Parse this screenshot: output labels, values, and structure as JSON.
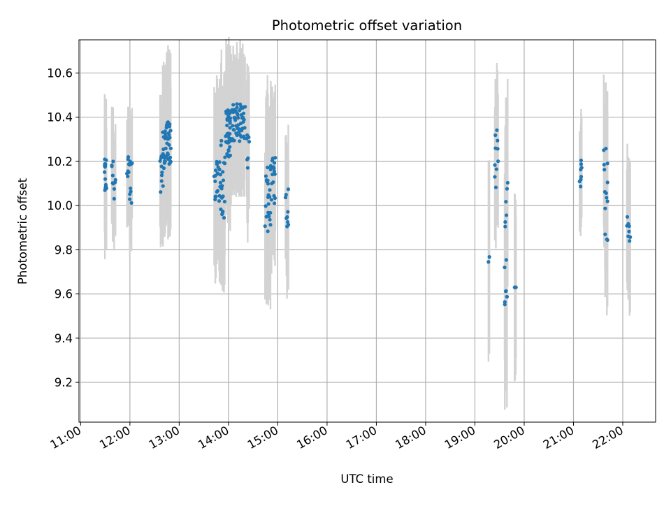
{
  "chart_data": {
    "type": "scatter",
    "title": "Photometric offset variation",
    "xlabel": "UTC time",
    "ylabel": "Photometric offset",
    "xlim": [
      "10:58",
      "22:40"
    ],
    "ylim": [
      9.02,
      10.75
    ],
    "xticks": [
      "11:00",
      "12:00",
      "13:00",
      "14:00",
      "15:00",
      "16:00",
      "17:00",
      "18:00",
      "19:00",
      "20:00",
      "21:00",
      "22:00"
    ],
    "yticks": [
      9.2,
      9.4,
      9.6,
      9.8,
      10.0,
      10.2,
      10.4,
      10.6
    ],
    "grid": true,
    "colors": {
      "points": "#1f77b4",
      "errorbars": "#d3d3d3",
      "grid": "#b0b0b0"
    },
    "clusters": [
      {
        "start": "11:29",
        "end": "11:31",
        "n": 14,
        "ymin": 10.04,
        "ymax": 10.21,
        "err": 0.28
      },
      {
        "start": "11:38",
        "end": "11:42",
        "n": 10,
        "ymin": 10.03,
        "ymax": 10.21,
        "err": 0.25
      },
      {
        "start": "11:57",
        "end": "12:02",
        "n": 16,
        "ymin": 10.01,
        "ymax": 10.23,
        "err": 0.23
      },
      {
        "start": "12:37",
        "end": "12:40",
        "n": 10,
        "ymin": 10.06,
        "ymax": 10.3,
        "err": 0.27
      },
      {
        "start": "12:40",
        "end": "12:50",
        "n": 40,
        "ymin": 10.14,
        "ymax": 10.38,
        "err": 0.32
      },
      {
        "start": "13:43",
        "end": "13:50",
        "n": 22,
        "ymin": 10.02,
        "ymax": 10.2,
        "err": 0.36
      },
      {
        "start": "13:50",
        "end": "13:56",
        "n": 18,
        "ymin": 9.94,
        "ymax": 10.3,
        "err": 0.38
      },
      {
        "start": "13:57",
        "end": "14:03",
        "n": 35,
        "ymin": 10.22,
        "ymax": 10.44,
        "err": 0.3
      },
      {
        "start": "14:04",
        "end": "14:20",
        "n": 50,
        "ymin": 10.29,
        "ymax": 10.46,
        "err": 0.26
      },
      {
        "start": "14:22",
        "end": "14:25",
        "n": 8,
        "ymin": 10.15,
        "ymax": 10.33,
        "err": 0.3
      },
      {
        "start": "14:45",
        "end": "14:52",
        "n": 25,
        "ymin": 9.88,
        "ymax": 10.2,
        "err": 0.38
      },
      {
        "start": "14:53",
        "end": "14:57",
        "n": 16,
        "ymin": 10.01,
        "ymax": 10.29,
        "err": 0.3
      },
      {
        "start": "15:10",
        "end": "15:13",
        "n": 9,
        "ymin": 9.88,
        "ymax": 10.11,
        "err": 0.3
      },
      {
        "start": "19:16",
        "end": "19:17",
        "n": 2,
        "ymin": 9.74,
        "ymax": 9.85,
        "err": 0.43
      },
      {
        "start": "19:24",
        "end": "19:28",
        "n": 10,
        "ymin": 10.07,
        "ymax": 10.36,
        "err": 0.28
      },
      {
        "start": "19:36",
        "end": "19:40",
        "n": 14,
        "ymin": 9.54,
        "ymax": 10.17,
        "err": 0.45
      },
      {
        "start": "19:48",
        "end": "19:50",
        "n": 4,
        "ymin": 9.63,
        "ymax": 9.63,
        "err": 0.37
      },
      {
        "start": "21:08",
        "end": "21:10",
        "n": 8,
        "ymin": 10.06,
        "ymax": 10.24,
        "err": 0.22
      },
      {
        "start": "21:37",
        "end": "21:42",
        "n": 14,
        "ymin": 9.82,
        "ymax": 10.27,
        "err": 0.33
      },
      {
        "start": "22:05",
        "end": "22:09",
        "n": 8,
        "ymin": 9.83,
        "ymax": 9.96,
        "err": 0.3
      }
    ]
  }
}
